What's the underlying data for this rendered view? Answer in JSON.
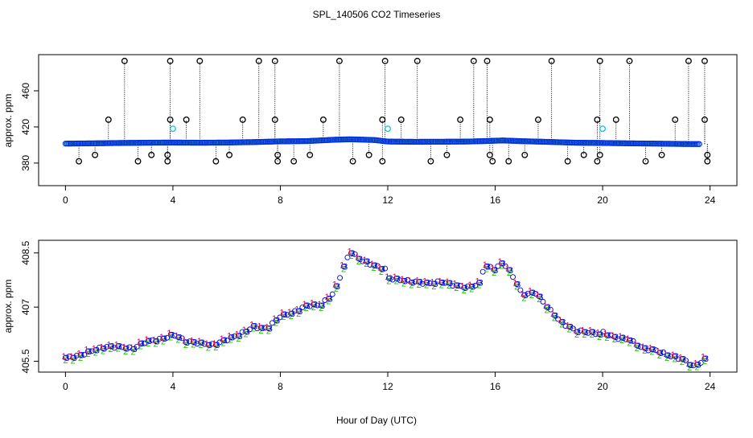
{
  "chart_data": [
    {
      "type": "scatter",
      "panel": "top",
      "title": "SPL_140506  CO2 Timeseries",
      "xlabel": "",
      "ylabel": "approx. ppm",
      "xlim": [
        -1,
        25
      ],
      "ylim": [
        355,
        500
      ],
      "xticks": [
        0,
        4,
        8,
        12,
        16,
        20,
        24
      ],
      "yticks": [
        380,
        420,
        460
      ],
      "baseline": [
        {
          "x": 0.0,
          "y": 401.5
        },
        {
          "x": 1.0,
          "y": 401.8
        },
        {
          "x": 2.0,
          "y": 402.2
        },
        {
          "x": 3.0,
          "y": 402.5
        },
        {
          "x": 3.9,
          "y": 402.7
        },
        {
          "x": 5.0,
          "y": 402.5
        },
        {
          "x": 6.0,
          "y": 402.7
        },
        {
          "x": 7.0,
          "y": 403.2
        },
        {
          "x": 8.0,
          "y": 404.0
        },
        {
          "x": 9.0,
          "y": 404.3
        },
        {
          "x": 10.0,
          "y": 405.8
        },
        {
          "x": 10.6,
          "y": 406.3
        },
        {
          "x": 11.5,
          "y": 405.5
        },
        {
          "x": 12.0,
          "y": 403.8
        },
        {
          "x": 13.0,
          "y": 403.5
        },
        {
          "x": 14.0,
          "y": 403.6
        },
        {
          "x": 15.0,
          "y": 403.8
        },
        {
          "x": 15.6,
          "y": 404.3
        },
        {
          "x": 16.3,
          "y": 405.0
        },
        {
          "x": 17.0,
          "y": 404.2
        },
        {
          "x": 18.0,
          "y": 403.4
        },
        {
          "x": 19.0,
          "y": 402.5
        },
        {
          "x": 19.8,
          "y": 402.3
        },
        {
          "x": 21.0,
          "y": 401.8
        },
        {
          "x": 22.0,
          "y": 401.5
        },
        {
          "x": 23.0,
          "y": 401.1
        },
        {
          "x": 23.6,
          "y": 401.0
        }
      ],
      "spikes_high": [
        {
          "x": 2.2,
          "y": 493
        },
        {
          "x": 3.9,
          "y": 493
        },
        {
          "x": 5.0,
          "y": 493
        },
        {
          "x": 7.2,
          "y": 493
        },
        {
          "x": 7.8,
          "y": 493
        },
        {
          "x": 10.2,
          "y": 493
        },
        {
          "x": 11.9,
          "y": 493
        },
        {
          "x": 13.1,
          "y": 493
        },
        {
          "x": 15.2,
          "y": 493
        },
        {
          "x": 15.7,
          "y": 493
        },
        {
          "x": 18.1,
          "y": 493
        },
        {
          "x": 19.9,
          "y": 493
        },
        {
          "x": 21.0,
          "y": 493
        },
        {
          "x": 23.2,
          "y": 493
        },
        {
          "x": 23.8,
          "y": 493
        },
        {
          "x": 1.6,
          "y": 428
        },
        {
          "x": 3.9,
          "y": 428
        },
        {
          "x": 4.5,
          "y": 428
        },
        {
          "x": 6.6,
          "y": 428
        },
        {
          "x": 7.8,
          "y": 428
        },
        {
          "x": 9.6,
          "y": 428
        },
        {
          "x": 11.8,
          "y": 428
        },
        {
          "x": 12.5,
          "y": 428
        },
        {
          "x": 14.7,
          "y": 428
        },
        {
          "x": 15.8,
          "y": 428
        },
        {
          "x": 17.6,
          "y": 428
        },
        {
          "x": 19.8,
          "y": 428
        },
        {
          "x": 20.5,
          "y": 428
        },
        {
          "x": 22.7,
          "y": 428
        },
        {
          "x": 23.8,
          "y": 428
        }
      ],
      "spikes_low": [
        {
          "x": 0.5,
          "y": 382
        },
        {
          "x": 1.1,
          "y": 389
        },
        {
          "x": 2.7,
          "y": 382
        },
        {
          "x": 3.2,
          "y": 389
        },
        {
          "x": 3.8,
          "y": 382
        },
        {
          "x": 3.8,
          "y": 389
        },
        {
          "x": 5.6,
          "y": 382
        },
        {
          "x": 6.1,
          "y": 389
        },
        {
          "x": 7.9,
          "y": 382
        },
        {
          "x": 7.9,
          "y": 389
        },
        {
          "x": 8.5,
          "y": 382
        },
        {
          "x": 9.1,
          "y": 389
        },
        {
          "x": 10.7,
          "y": 382
        },
        {
          "x": 11.3,
          "y": 389
        },
        {
          "x": 11.8,
          "y": 382
        },
        {
          "x": 13.6,
          "y": 382
        },
        {
          "x": 14.2,
          "y": 389
        },
        {
          "x": 15.8,
          "y": 389
        },
        {
          "x": 15.9,
          "y": 382
        },
        {
          "x": 16.5,
          "y": 382
        },
        {
          "x": 17.1,
          "y": 389
        },
        {
          "x": 18.7,
          "y": 382
        },
        {
          "x": 19.3,
          "y": 389
        },
        {
          "x": 19.8,
          "y": 382
        },
        {
          "x": 19.9,
          "y": 389
        },
        {
          "x": 21.6,
          "y": 382
        },
        {
          "x": 22.2,
          "y": 389
        },
        {
          "x": 23.9,
          "y": 382
        },
        {
          "x": 23.9,
          "y": 389
        }
      ],
      "cyan_points": [
        {
          "x": 4.0,
          "y": 418
        },
        {
          "x": 12.0,
          "y": 418
        },
        {
          "x": 20.0,
          "y": 418
        }
      ]
    },
    {
      "type": "scatter",
      "panel": "bottom",
      "title": "",
      "xlabel": "Hour of Day (UTC)",
      "ylabel": "approx. ppm",
      "xlim": [
        -1,
        25
      ],
      "ylim": [
        405.2,
        408.85
      ],
      "xticks": [
        0,
        4,
        8,
        12,
        16,
        20,
        24
      ],
      "yticks": [
        405.5,
        407.0,
        408.5
      ],
      "series_symbols": [
        "1",
        "2",
        "3"
      ],
      "series_colors": [
        "#e0003c",
        "#22c400",
        "#0000dd"
      ],
      "series_offsets": [
        0.05,
        -0.07,
        0.0
      ],
      "trend": [
        {
          "x": 0.0,
          "y": 405.6
        },
        {
          "x": 0.5,
          "y": 405.65
        },
        {
          "x": 1.0,
          "y": 405.8
        },
        {
          "x": 1.5,
          "y": 405.9
        },
        {
          "x": 2.0,
          "y": 405.9
        },
        {
          "x": 2.5,
          "y": 405.85
        },
        {
          "x": 3.0,
          "y": 406.05
        },
        {
          "x": 3.5,
          "y": 406.1
        },
        {
          "x": 3.9,
          "y": 406.2
        },
        {
          "x": 4.0,
          "y": 406.25
        },
        {
          "x": 4.5,
          "y": 406.05
        },
        {
          "x": 5.0,
          "y": 406.0
        },
        {
          "x": 5.5,
          "y": 405.95
        },
        {
          "x": 6.0,
          "y": 406.1
        },
        {
          "x": 6.5,
          "y": 406.25
        },
        {
          "x": 7.0,
          "y": 406.45
        },
        {
          "x": 7.5,
          "y": 406.4
        },
        {
          "x": 8.0,
          "y": 406.75
        },
        {
          "x": 8.5,
          "y": 406.85
        },
        {
          "x": 9.0,
          "y": 407.05
        },
        {
          "x": 9.5,
          "y": 407.05
        },
        {
          "x": 10.0,
          "y": 407.4
        },
        {
          "x": 10.3,
          "y": 408.0
        },
        {
          "x": 10.6,
          "y": 408.55
        },
        {
          "x": 11.0,
          "y": 408.3
        },
        {
          "x": 11.5,
          "y": 408.15
        },
        {
          "x": 11.9,
          "y": 408.05
        },
        {
          "x": 12.0,
          "y": 407.8
        },
        {
          "x": 12.5,
          "y": 407.75
        },
        {
          "x": 13.0,
          "y": 407.7
        },
        {
          "x": 13.5,
          "y": 407.65
        },
        {
          "x": 14.0,
          "y": 407.7
        },
        {
          "x": 14.5,
          "y": 407.6
        },
        {
          "x": 15.0,
          "y": 407.55
        },
        {
          "x": 15.4,
          "y": 407.65
        },
        {
          "x": 15.6,
          "y": 408.15
        },
        {
          "x": 16.0,
          "y": 408.05
        },
        {
          "x": 16.3,
          "y": 408.25
        },
        {
          "x": 16.7,
          "y": 407.8
        },
        {
          "x": 17.0,
          "y": 407.35
        },
        {
          "x": 17.5,
          "y": 407.4
        },
        {
          "x": 18.0,
          "y": 406.95
        },
        {
          "x": 18.5,
          "y": 406.55
        },
        {
          "x": 19.0,
          "y": 406.35
        },
        {
          "x": 19.5,
          "y": 406.3
        },
        {
          "x": 19.9,
          "y": 406.25
        },
        {
          "x": 20.0,
          "y": 406.3
        },
        {
          "x": 20.5,
          "y": 406.15
        },
        {
          "x": 21.0,
          "y": 406.1
        },
        {
          "x": 21.5,
          "y": 405.85
        },
        {
          "x": 22.0,
          "y": 405.8
        },
        {
          "x": 22.5,
          "y": 405.65
        },
        {
          "x": 23.0,
          "y": 405.55
        },
        {
          "x": 23.4,
          "y": 405.35
        },
        {
          "x": 23.8,
          "y": 405.55
        }
      ]
    }
  ]
}
